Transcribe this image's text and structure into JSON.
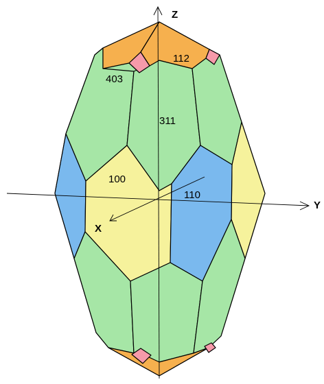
{
  "colors": {
    "green": "#a6e6a6",
    "yellow": "#f6f29c",
    "blue": "#7ab9ee",
    "orange": "#f6b04e",
    "pink": "#f69aaa"
  },
  "axes": {
    "x": "X",
    "y": "Y",
    "z": "Z"
  },
  "face_labels": {
    "f112": "112",
    "f403": "403",
    "f311": "311",
    "f100": "100",
    "f110": "110"
  }
}
